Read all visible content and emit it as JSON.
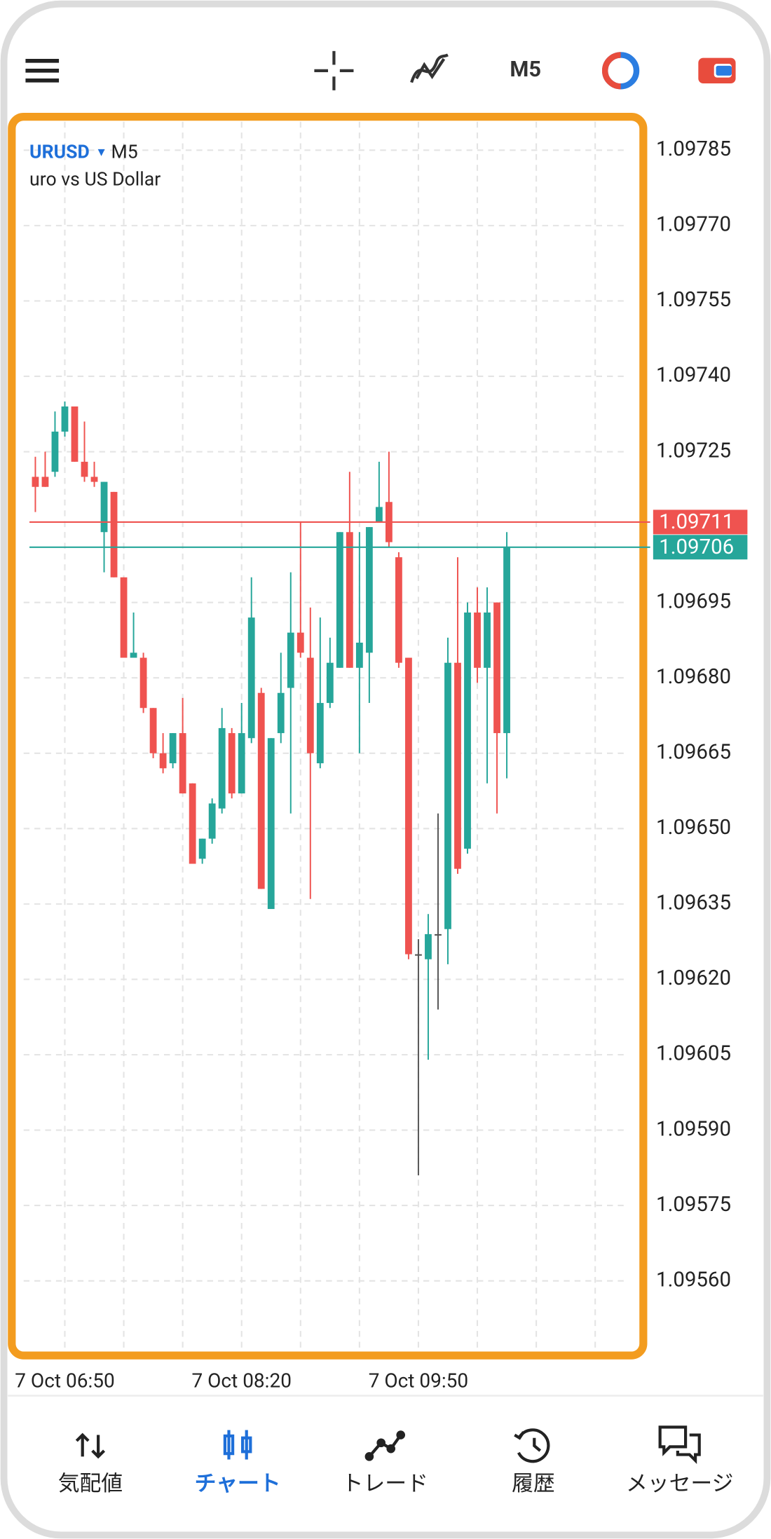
{
  "toolbar": {
    "timeframe": "M5"
  },
  "chart_data": {
    "type": "candlestick",
    "symbol": "URUSD",
    "timeframe": "M5",
    "description": "uro vs US Dollar",
    "categories": [
      null,
      null,
      null,
      "7 Oct 06:50",
      null,
      null,
      null,
      null,
      null,
      null,
      null,
      null,
      null,
      null,
      null,
      null,
      null,
      null,
      null,
      null,
      null,
      "7 Oct 08:20",
      null,
      null,
      null,
      null,
      null,
      null,
      null,
      null,
      null,
      null,
      null,
      null,
      null,
      null,
      null,
      null,
      null,
      "7 Oct 09:50",
      null,
      null,
      null,
      null,
      null,
      null,
      null,
      null,
      null
    ],
    "open": [
      1.0972,
      1.0972,
      1.09721,
      1.09729,
      1.09734,
      1.09723,
      1.0972,
      1.09709,
      1.09717,
      1.097,
      1.09684,
      1.09684,
      1.09674,
      1.09665,
      1.09663,
      1.09669,
      1.09659,
      1.09644,
      1.09648,
      1.09654,
      1.09669,
      1.09657,
      1.09668,
      1.09677,
      1.09634,
      1.09669,
      1.09678,
      1.09689,
      1.09684,
      1.09663,
      1.09675,
      1.09682,
      1.09709,
      1.09682,
      1.09685,
      1.09711,
      1.09715,
      1.09704,
      1.09684,
      1.09625,
      1.09624,
      1.09629,
      1.0963,
      1.09683,
      1.09646,
      1.09693,
      1.09682,
      1.09695,
      1.09669
    ],
    "high": [
      1.09724,
      1.09725,
      1.09733,
      1.09735,
      1.09734,
      1.09731,
      1.09723,
      1.09719,
      1.09717,
      1.097,
      1.09693,
      1.09685,
      1.09674,
      1.09669,
      1.09669,
      1.09676,
      1.09659,
      1.09648,
      1.09656,
      1.09674,
      1.0967,
      1.09675,
      1.097,
      1.09678,
      1.09668,
      1.09685,
      1.09701,
      1.09711,
      1.09694,
      1.09692,
      1.09688,
      1.09709,
      1.09721,
      1.09709,
      1.0971,
      1.09723,
      1.09725,
      1.09705,
      1.09684,
      1.09628,
      1.09633,
      1.09653,
      1.09688,
      1.09704,
      1.09695,
      1.09698,
      1.09698,
      1.09695,
      1.09709
    ],
    "low": [
      1.09713,
      1.09718,
      1.0972,
      1.09728,
      1.09723,
      1.09719,
      1.09718,
      1.09701,
      1.097,
      1.09684,
      1.09684,
      1.09673,
      1.09664,
      1.09661,
      1.09662,
      1.09657,
      1.09643,
      1.09643,
      1.09647,
      1.09653,
      1.09656,
      1.09657,
      1.09667,
      1.09638,
      1.09634,
      1.09667,
      1.09653,
      1.09684,
      1.09636,
      1.09662,
      1.09674,
      1.09682,
      1.09682,
      1.09665,
      1.09675,
      1.09711,
      1.09706,
      1.09682,
      1.09624,
      1.09581,
      1.09604,
      1.09614,
      1.09623,
      1.09641,
      1.09645,
      1.09679,
      1.09659,
      1.09653,
      1.0966
    ],
    "close": [
      1.09718,
      1.09718,
      1.09729,
      1.09734,
      1.09723,
      1.0972,
      1.09719,
      1.09719,
      1.097,
      1.09684,
      1.09685,
      1.09674,
      1.09665,
      1.09662,
      1.09669,
      1.09657,
      1.09643,
      1.09648,
      1.09655,
      1.0967,
      1.09657,
      1.09669,
      1.09692,
      1.09638,
      1.09668,
      1.09677,
      1.09689,
      1.09685,
      1.09665,
      1.09675,
      1.09683,
      1.09709,
      1.09682,
      1.09687,
      1.0971,
      1.09714,
      1.09707,
      1.09683,
      1.09625,
      1.09625,
      1.09629,
      1.09629,
      1.09683,
      1.09642,
      1.09693,
      1.09682,
      1.09693,
      1.09669,
      1.09706
    ],
    "up_color": "#26a69a",
    "down_color": "#ef5350",
    "doji_color": "#555555",
    "ask_line": {
      "value": 1.09711,
      "color": "#ef5350"
    },
    "bid_line": {
      "value": 1.09706,
      "color": "#26a69a"
    },
    "ylim": [
      1.09545,
      1.09791
    ],
    "yticks": [
      {
        "value": 1.0956,
        "label": "1.09560"
      },
      1.09575,
      {
        "value": 1.0959,
        "label": "1.09590"
      },
      1.09605,
      {
        "value": 1.0962,
        "label": "1.09620"
      },
      1.09635,
      {
        "value": 1.0965,
        "label": "1.09650"
      },
      1.09665,
      {
        "value": 1.0968,
        "label": "1.09680"
      },
      1.09695,
      1.09725,
      {
        "value": 1.0974,
        "label": "1.09740"
      },
      1.09755,
      {
        "value": 1.0977,
        "label": "1.09770"
      },
      1.09785
    ],
    "grid": true
  },
  "nav": {
    "items": [
      "気配値",
      "チャート",
      "トレード",
      "履歴",
      "メッセージ"
    ],
    "active": 1,
    "active_color": "#1e6fd9"
  }
}
